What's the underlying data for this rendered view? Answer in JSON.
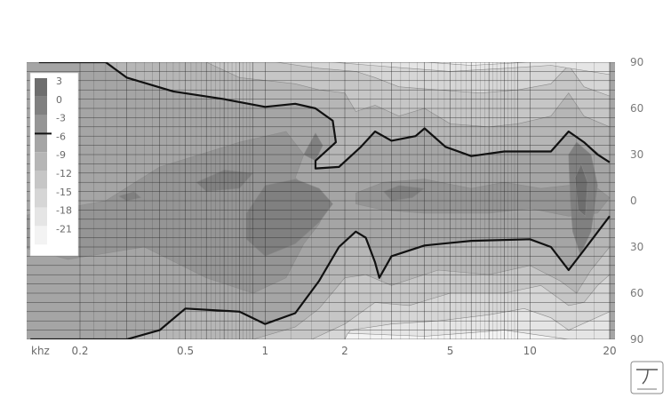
{
  "chart_data": {
    "type": "heatmap",
    "title": "",
    "xlabel": "",
    "ylabel": "",
    "x_unit": "khz",
    "x_scale": "log",
    "xlim": [
      0.1,
      20
    ],
    "x_ticks": [
      {
        "value": 0.2,
        "label": "0.2"
      },
      {
        "value": 0.5,
        "label": "0.5"
      },
      {
        "value": 1,
        "label": "1"
      },
      {
        "value": 2,
        "label": "2"
      },
      {
        "value": 5,
        "label": "5"
      },
      {
        "value": 10,
        "label": "10"
      },
      {
        "value": 20,
        "label": "20"
      }
    ],
    "ylim": [
      -90,
      90
    ],
    "y_ticks": [
      {
        "value": 90,
        "label": "90"
      },
      {
        "value": 60,
        "label": "60"
      },
      {
        "value": 30,
        "label": "30"
      },
      {
        "value": 0,
        "label": "0"
      },
      {
        "value": -30,
        "label": "30"
      },
      {
        "value": -60,
        "label": "60"
      },
      {
        "value": -90,
        "label": "90"
      }
    ],
    "grid": true,
    "legend_position": "left",
    "legend": [
      {
        "label": "3",
        "color": "#6e6e6e"
      },
      {
        "label": "0",
        "color": "#808080"
      },
      {
        "label": "-3",
        "color": "#959595"
      },
      {
        "label": "-6",
        "color": "#a5a5a5"
      },
      {
        "label": "-9",
        "color": "#b6b6b6"
      },
      {
        "label": "-12",
        "color": "#c6c6c6"
      },
      {
        "label": "-15",
        "color": "#d6d6d6"
      },
      {
        "label": "-18",
        "color": "#e5e5e5"
      },
      {
        "label": "-21",
        "color": "#f3f3f3"
      }
    ],
    "minus6_contour_upper": [
      {
        "x": 0.14,
        "y": 90
      },
      {
        "x": 0.25,
        "y": 90
      },
      {
        "x": 0.3,
        "y": 80
      },
      {
        "x": 0.45,
        "y": 71
      },
      {
        "x": 0.7,
        "y": 66
      },
      {
        "x": 1.0,
        "y": 61
      },
      {
        "x": 1.3,
        "y": 63
      },
      {
        "x": 1.55,
        "y": 60
      },
      {
        "x": 1.8,
        "y": 52
      },
      {
        "x": 1.85,
        "y": 38
      },
      {
        "x": 1.55,
        "y": 26
      },
      {
        "x": 1.55,
        "y": 21
      },
      {
        "x": 1.9,
        "y": 22
      },
      {
        "x": 2.3,
        "y": 35
      },
      {
        "x": 2.6,
        "y": 45
      },
      {
        "x": 3.0,
        "y": 39
      },
      {
        "x": 3.7,
        "y": 42
      },
      {
        "x": 4.0,
        "y": 47
      },
      {
        "x": 4.8,
        "y": 35
      },
      {
        "x": 6.0,
        "y": 29
      },
      {
        "x": 8.0,
        "y": 32
      },
      {
        "x": 12.0,
        "y": 32
      },
      {
        "x": 14.0,
        "y": 45
      },
      {
        "x": 16.0,
        "y": 38
      },
      {
        "x": 18.0,
        "y": 30
      },
      {
        "x": 20.0,
        "y": 25
      }
    ],
    "minus6_contour_lower": [
      {
        "x": 0.13,
        "y": -90
      },
      {
        "x": 0.3,
        "y": -90
      },
      {
        "x": 0.4,
        "y": -84
      },
      {
        "x": 0.5,
        "y": -70
      },
      {
        "x": 0.8,
        "y": -72
      },
      {
        "x": 1.0,
        "y": -80
      },
      {
        "x": 1.3,
        "y": -73
      },
      {
        "x": 1.6,
        "y": -52
      },
      {
        "x": 1.9,
        "y": -30
      },
      {
        "x": 2.2,
        "y": -20
      },
      {
        "x": 2.4,
        "y": -24
      },
      {
        "x": 2.6,
        "y": -40
      },
      {
        "x": 2.7,
        "y": -50
      },
      {
        "x": 3.0,
        "y": -36
      },
      {
        "x": 4.0,
        "y": -29
      },
      {
        "x": 6.0,
        "y": -26
      },
      {
        "x": 10.0,
        "y": -25
      },
      {
        "x": 12.0,
        "y": -30
      },
      {
        "x": 14.0,
        "y": -45
      },
      {
        "x": 16.0,
        "y": -32
      },
      {
        "x": 20.0,
        "y": -10
      }
    ]
  }
}
